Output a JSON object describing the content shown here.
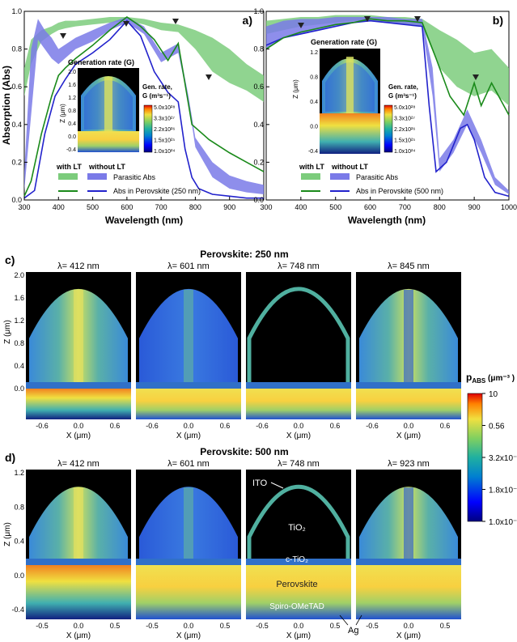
{
  "figure": {
    "panel_a": {
      "letter": "a)",
      "ylabel": "Absorption (Abs)",
      "xlabel": "Wavelength (nm)",
      "yticks": [
        "0.0",
        "0.2",
        "0.4",
        "0.6",
        "0.8",
        "1.0"
      ],
      "xticks": [
        "300",
        "400",
        "500",
        "600",
        "700",
        "800",
        "900"
      ],
      "legend": {
        "with_lt": "with LT",
        "without_lt": "without LT",
        "parasitic": "Parasitic Abs",
        "abs_perov": "Abs in Perovskite (250 nm)"
      },
      "inset": {
        "title": "Generation rate (G)",
        "zlabel": "Z (μm)",
        "zticks": [
          "2.0",
          "1.6",
          "1.2",
          "0.8",
          "0.4",
          "0.0",
          "-0.4"
        ],
        "cbar_title1": "Gen. rate,",
        "cbar_title2": "G (m³s⁻¹)",
        "cbar_ticks": [
          "5.0x10²⁸",
          "3.3x10²⁷",
          "2.2x10²⁶",
          "1.5x10²⁵",
          "1.0x10²⁴"
        ]
      }
    },
    "panel_b": {
      "letter": "b)",
      "xlabel": "Wavelength (nm)",
      "yticks": [
        "0.0",
        "0.2",
        "0.4",
        "0.6",
        "0.8",
        "1.0"
      ],
      "xticks": [
        "300",
        "400",
        "500",
        "600",
        "700",
        "800",
        "900",
        "1000"
      ],
      "legend": {
        "with_lt": "with LT",
        "without_lt": "without LT",
        "parasitic": "Parasitic Abs",
        "abs_perov": "Abs in Perovskite (500 nm)"
      },
      "inset": {
        "title": "Generation rate (G)",
        "zlabel": "Z (μm)",
        "zticks": [
          "1.2",
          "0.8",
          "0.4",
          "0.0",
          "-0.4"
        ],
        "cbar_title1": "Gen. rate,",
        "cbar_title2": "G (m³s⁻¹)",
        "cbar_ticks": [
          "5.0x10²⁸",
          "3.3x10²⁷",
          "2.2x10²⁶",
          "1.5x10²⁵",
          "1.0x10²⁴"
        ]
      }
    },
    "panel_c": {
      "letter": "c)",
      "title": "Perovskite: 250 nm",
      "wavelengths": [
        "λ= 412 nm",
        "λ= 601 nm",
        "λ= 748 nm",
        "λ= 845 nm"
      ],
      "zlabel": "Z (μm)",
      "zticks": [
        "2.0",
        "1.6",
        "1.2",
        "0.8",
        "0.4",
        "0.0"
      ],
      "xlabel": "X (μm)",
      "xticks": [
        "-0.6",
        "0.0",
        "0.6"
      ]
    },
    "panel_d": {
      "letter": "d)",
      "title": "Perovskite: 500 nm",
      "wavelengths": [
        "λ= 412 nm",
        "λ= 601 nm",
        "λ= 748 nm",
        "λ= 923 nm"
      ],
      "zlabel": "Z (μm)",
      "zticks": [
        "1.2",
        "0.8",
        "0.4",
        "0.0",
        "-0.4"
      ],
      "xlabel": "X (μm)",
      "xticks": [
        "-0.5",
        "0.0",
        "0.5"
      ],
      "layer_labels": {
        "ito": "ITO",
        "tio2": "TiO₂",
        "ctio2": "c-TiO₂",
        "perovskite": "Perovskite",
        "spiro": "Spiro-OMeTAD",
        "ag": "Ag"
      }
    },
    "colorbar_pabs": {
      "title": "p",
      "title_sub": "ABS",
      "unit": " (μm⁻³ )",
      "ticks": [
        "10",
        "0.56",
        "3.2x10⁻²",
        "1.8x10⁻³",
        "1.0x10⁻⁴"
      ]
    }
  },
  "chart_data": [
    {
      "type": "area",
      "panel": "a",
      "xlabel": "Wavelength (nm)",
      "ylabel": "Absorption (Abs)",
      "xlim": [
        300,
        1000
      ],
      "ylim": [
        0,
        1.0
      ],
      "series": [
        {
          "name": "Parasitic Abs",
          "style": "band-green",
          "x": [
            300,
            320,
            350,
            380,
            400,
            420,
            450,
            500,
            550,
            600,
            650,
            700,
            750,
            800,
            850,
            900,
            950,
            1000
          ],
          "low": [
            0.55,
            0.72,
            0.84,
            0.88,
            0.9,
            0.91,
            0.92,
            0.93,
            0.94,
            0.95,
            0.93,
            0.9,
            0.89,
            0.8,
            0.68,
            0.62,
            0.58,
            0.52
          ],
          "high": [
            0.7,
            0.85,
            0.9,
            0.92,
            0.94,
            0.95,
            0.95,
            0.96,
            0.97,
            0.97,
            0.96,
            0.94,
            0.93,
            0.9,
            0.86,
            0.8,
            0.72,
            0.66
          ]
        },
        {
          "name": "Parasitic Abs",
          "style": "band-blue",
          "x": [
            300,
            320,
            340,
            360,
            380,
            400,
            450,
            500,
            550,
            600,
            650,
            700,
            750,
            780,
            800,
            850,
            900,
            950,
            1000
          ],
          "low": [
            0.05,
            0.45,
            0.85,
            0.8,
            0.75,
            0.72,
            0.8,
            0.84,
            0.9,
            0.94,
            0.88,
            0.73,
            0.78,
            0.52,
            0.28,
            0.12,
            0.06,
            0.04,
            0.03
          ],
          "high": [
            0.15,
            0.8,
            0.96,
            0.9,
            0.86,
            0.8,
            0.86,
            0.9,
            0.94,
            0.97,
            0.92,
            0.78,
            0.83,
            0.55,
            0.33,
            0.2,
            0.13,
            0.1,
            0.08
          ]
        },
        {
          "name": "Abs in Perovskite (250 nm)",
          "with_lt": false,
          "color": "#2222cc",
          "x": [
            300,
            330,
            360,
            390,
            420,
            450,
            500,
            550,
            600,
            640,
            680,
            720,
            750,
            770,
            790,
            810,
            850,
            900,
            950,
            1000
          ],
          "y": [
            0.01,
            0.05,
            0.35,
            0.55,
            0.64,
            0.72,
            0.78,
            0.85,
            0.95,
            0.87,
            0.68,
            0.57,
            0.52,
            0.27,
            0.12,
            0.06,
            0.03,
            0.02,
            0.01,
            0.01
          ]
        },
        {
          "name": "Abs in Perovskite (250 nm)",
          "with_lt": true,
          "color": "#1a8a1a",
          "x": [
            300,
            320,
            350,
            380,
            400,
            420,
            450,
            500,
            550,
            600,
            640,
            680,
            720,
            750,
            790,
            840,
            900,
            950,
            1000
          ],
          "y": [
            0.02,
            0.1,
            0.35,
            0.55,
            0.66,
            0.7,
            0.75,
            0.82,
            0.9,
            0.97,
            0.92,
            0.85,
            0.74,
            0.83,
            0.4,
            0.32,
            0.25,
            0.2,
            0.15
          ]
        }
      ]
    },
    {
      "type": "area",
      "panel": "b",
      "xlabel": "Wavelength (nm)",
      "xlim": [
        300,
        1000
      ],
      "ylim": [
        0,
        1.0
      ],
      "series": [
        {
          "name": "Parasitic Abs",
          "style": "band-green",
          "x": [
            300,
            350,
            400,
            450,
            500,
            550,
            600,
            650,
            700,
            750,
            800,
            850,
            900,
            950,
            1000
          ],
          "low": [
            0.88,
            0.9,
            0.92,
            0.93,
            0.94,
            0.95,
            0.95,
            0.94,
            0.93,
            0.92,
            0.7,
            0.6,
            0.55,
            0.58,
            0.5
          ],
          "high": [
            0.95,
            0.96,
            0.97,
            0.97,
            0.98,
            0.98,
            0.98,
            0.97,
            0.97,
            0.96,
            0.9,
            0.85,
            0.78,
            0.8,
            0.7
          ]
        },
        {
          "name": "Parasitic Abs",
          "style": "band-blue",
          "x": [
            300,
            350,
            400,
            450,
            500,
            550,
            600,
            650,
            700,
            750,
            780,
            800,
            840,
            880,
            920,
            960,
            1000
          ],
          "low": [
            0.8,
            0.86,
            0.88,
            0.9,
            0.92,
            0.94,
            0.95,
            0.94,
            0.93,
            0.92,
            0.55,
            0.15,
            0.25,
            0.4,
            0.25,
            0.08,
            0.03
          ],
          "high": [
            0.92,
            0.95,
            0.96,
            0.96,
            0.97,
            0.97,
            0.97,
            0.97,
            0.96,
            0.96,
            0.7,
            0.22,
            0.32,
            0.48,
            0.32,
            0.12,
            0.05
          ]
        },
        {
          "name": "Abs in Perovskite (500 nm)",
          "with_lt": false,
          "color": "#2222cc",
          "x": [
            300,
            350,
            400,
            450,
            500,
            550,
            600,
            650,
            700,
            750,
            770,
            790,
            820,
            860,
            880,
            900,
            930,
            960,
            1000
          ],
          "y": [
            0.82,
            0.86,
            0.88,
            0.9,
            0.92,
            0.94,
            0.95,
            0.94,
            0.93,
            0.92,
            0.5,
            0.15,
            0.2,
            0.38,
            0.4,
            0.32,
            0.12,
            0.04,
            0.02
          ]
        },
        {
          "name": "Abs in Perovskite (500 nm)",
          "with_lt": true,
          "color": "#1a8a1a",
          "x": [
            300,
            350,
            400,
            450,
            500,
            550,
            600,
            650,
            700,
            750,
            790,
            830,
            870,
            900,
            920,
            950,
            1000
          ],
          "y": [
            0.8,
            0.86,
            0.89,
            0.91,
            0.93,
            0.94,
            0.96,
            0.95,
            0.95,
            0.94,
            0.75,
            0.55,
            0.45,
            0.62,
            0.5,
            0.62,
            0.45
          ]
        }
      ]
    }
  ]
}
